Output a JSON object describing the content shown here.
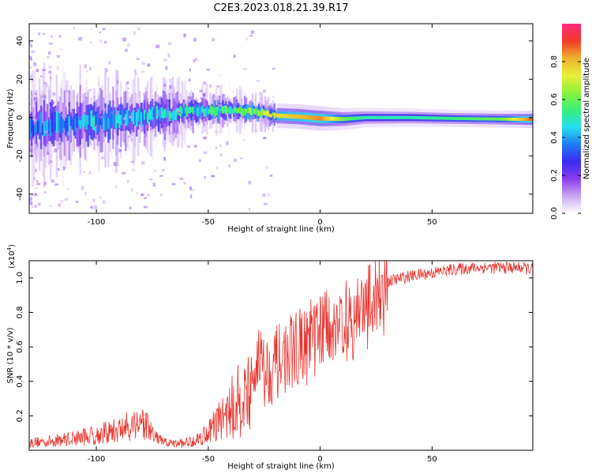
{
  "title": "C2E3.2023.018.21.39.R17",
  "colors": {
    "line": "#e8342e",
    "colormap": [
      "#ffffff",
      "#c9a6f0",
      "#8a3cf0",
      "#3a2af0",
      "#1f7cf5",
      "#27e0f0",
      "#37f07a",
      "#8cf03a",
      "#e8f03a",
      "#f0b02a",
      "#f03a2a",
      "#ff2a7a"
    ]
  },
  "chart_data": [
    {
      "type": "heatmap",
      "xlabel": "Height of straight line (km)",
      "ylabel": "Frequency (Hz)",
      "xlim": [
        -130,
        95
      ],
      "ylim": [
        -50,
        49
      ],
      "xticks": [
        -100,
        -50,
        0,
        50
      ],
      "yticks": [
        -40,
        -20,
        0,
        20,
        40
      ],
      "colorbar": {
        "label": "Normalized spectral amplitude",
        "range": [
          0.0,
          1.0
        ],
        "ticks": [
          "0.0",
          "0.2",
          "0.4",
          "0.6",
          "0.8"
        ]
      },
      "ridge": {
        "x": [
          -130,
          -110,
          -90,
          -75,
          -60,
          -50,
          -40,
          -30,
          -20,
          -10,
          0,
          10,
          20,
          40,
          60,
          80,
          95
        ],
        "freq": [
          -5,
          -3,
          -1,
          1,
          3,
          3.5,
          4,
          3,
          1,
          0.5,
          -0.5,
          -0.8,
          0,
          0,
          -0.5,
          -0.8,
          -1
        ],
        "spread": [
          8,
          7,
          6,
          5,
          4,
          3.5,
          3,
          2.5,
          2,
          2,
          2,
          1.8,
          1.6,
          1.5,
          1.4,
          1.4,
          1.4
        ],
        "amplitude": [
          0.35,
          0.38,
          0.4,
          0.42,
          0.45,
          0.5,
          0.55,
          0.6,
          0.75,
          0.8,
          0.85,
          0.6,
          0.5,
          0.5,
          0.55,
          0.6,
          0.9
        ]
      }
    },
    {
      "type": "line",
      "xlabel": "Height of straight line (km)",
      "ylabel": "SNR (10 * v/v)",
      "yscale_label": "(x10",
      "yscale_exp": "4",
      "yscale_close": ")",
      "xlim": [
        -130,
        95
      ],
      "ylim": [
        0.0,
        1.1
      ],
      "xticks": [
        -100,
        -50,
        0,
        50
      ],
      "yticks": [
        0.2,
        0.4,
        0.6,
        0.8,
        1.0
      ],
      "series": [
        {
          "x": [
            -130,
            -120,
            -110,
            -100,
            -90,
            -85,
            -80,
            -75,
            -70,
            -65,
            -60,
            -55,
            -50,
            -45,
            -40,
            -35,
            -30,
            -28,
            -25,
            -20,
            -15,
            -10,
            -5,
            0,
            5,
            10,
            15,
            20,
            25,
            30,
            40,
            50,
            60,
            70,
            80,
            90,
            95
          ],
          "y": [
            0.05,
            0.06,
            0.08,
            0.1,
            0.13,
            0.16,
            0.2,
            0.1,
            0.05,
            0.04,
            0.05,
            0.07,
            0.12,
            0.2,
            0.25,
            0.3,
            0.35,
            0.6,
            0.45,
            0.5,
            0.55,
            0.6,
            0.65,
            0.7,
            0.75,
            0.75,
            0.8,
            0.85,
            0.92,
            0.98,
            1.01,
            1.03,
            1.05,
            1.06,
            1.06,
            1.06,
            1.05
          ]
        }
      ]
    }
  ]
}
